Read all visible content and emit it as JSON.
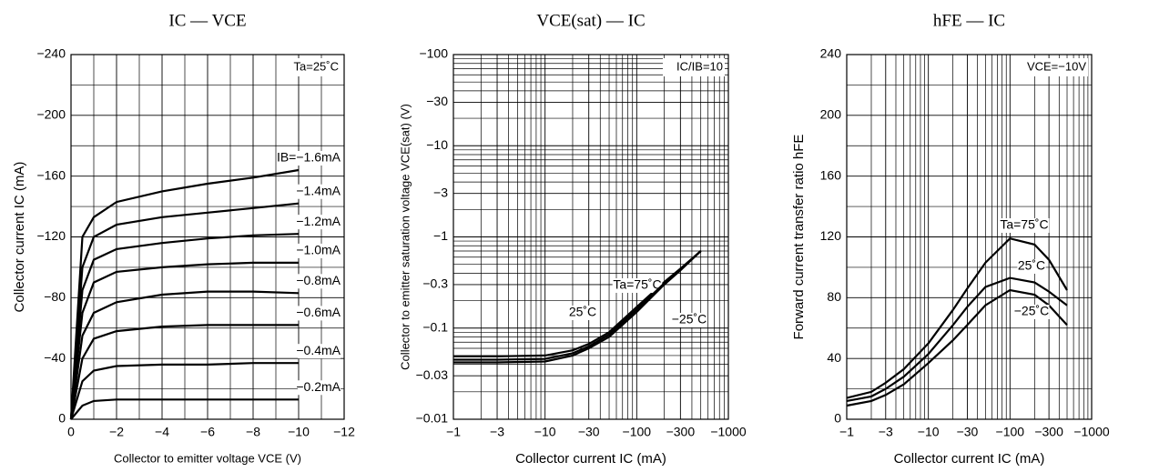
{
  "chart_data": [
    {
      "type": "line",
      "title": "IC — VCE",
      "x_label": "Collector to emitter voltage   VCE   (V)",
      "y_label": "Collector current   IC   (mA)",
      "annotation": "Ta=25˚C",
      "xlim": [
        0,
        -12
      ],
      "ylim": [
        0,
        -240
      ],
      "xticks": [
        0,
        {
          "value": -2,
          "label": "−2"
        },
        {
          "value": -4,
          "label": "−4"
        },
        {
          "value": -6,
          "label": "−6"
        },
        {
          "value": -8,
          "label": "−8"
        },
        {
          "value": -10,
          "label": "−10"
        },
        {
          "value": -12,
          "label": "−12"
        }
      ],
      "yticks": [
        0,
        {
          "value": -40,
          "label": "−40"
        },
        {
          "value": -80,
          "label": "−80"
        },
        {
          "value": -120,
          "label": "−120"
        },
        {
          "value": -160,
          "label": "−160"
        },
        {
          "value": -200,
          "label": "−200"
        },
        {
          "value": -240,
          "label": "−240"
        }
      ],
      "xminor": [
        -1,
        -3,
        -5,
        -7,
        -9,
        -11
      ],
      "yminor": [
        -20,
        -60,
        -100,
        -140,
        -180,
        -220
      ],
      "grid": true,
      "color": "#000000",
      "x": [
        0,
        -0.5,
        -1,
        -2,
        -4,
        -6,
        -8,
        -10
      ],
      "series": [
        {
          "name": "IB=−1.6mA",
          "values": [
            0,
            -120,
            -133,
            -143,
            -150,
            -155,
            -159,
            -164
          ]
        },
        {
          "name": "−1.4mA",
          "values": [
            0,
            -100,
            -120,
            -128,
            -133,
            -136,
            -139,
            -142
          ]
        },
        {
          "name": "−1.2mA",
          "values": [
            0,
            -85,
            -105,
            -112,
            -116,
            -119,
            -121,
            -122
          ]
        },
        {
          "name": "−1.0mA",
          "values": [
            0,
            -70,
            -90,
            -97,
            -100,
            -102,
            -103,
            -103
          ]
        },
        {
          "name": "−0.8mA",
          "values": [
            0,
            -55,
            -70,
            -77,
            -82,
            -84,
            -84,
            -83
          ]
        },
        {
          "name": "−0.6mA",
          "values": [
            0,
            -40,
            -53,
            -58,
            -61,
            -62,
            -62,
            -62
          ]
        },
        {
          "name": "−0.4mA",
          "values": [
            0,
            -25,
            -32,
            -35,
            -36,
            -36,
            -37,
            -37
          ]
        },
        {
          "name": "−0.2mA",
          "values": [
            0,
            -9,
            -12,
            -13,
            -13,
            -13,
            -13,
            -13
          ]
        }
      ]
    },
    {
      "type": "line",
      "title": "VCE(sat) — IC",
      "x_label": "Collector current   IC   (mA)",
      "y_label": "Collector to emitter saturation voltage   VCE(sat)   (V)",
      "annotation": "IC/IB=10",
      "xlog": true,
      "ylog": true,
      "xlim": [
        -1,
        -1000
      ],
      "ylim": [
        -0.01,
        -100
      ],
      "xticks": [
        {
          "value": -1,
          "label": "−1"
        },
        {
          "value": -3,
          "label": "−3"
        },
        {
          "value": -10,
          "label": "−10"
        },
        {
          "value": -30,
          "label": "−30"
        },
        {
          "value": -100,
          "label": "−100"
        },
        {
          "value": -300,
          "label": "−300"
        },
        {
          "value": -1000,
          "label": "−1000"
        }
      ],
      "yticks": [
        {
          "value": -0.01,
          "label": "−0.01"
        },
        {
          "value": -0.03,
          "label": "−0.03"
        },
        {
          "value": -0.1,
          "label": "−0.1"
        },
        {
          "value": -0.3,
          "label": "−0.3"
        },
        {
          "value": -1,
          "label": "−1"
        },
        {
          "value": -3,
          "label": "−3"
        },
        {
          "value": -10,
          "label": "−10"
        },
        {
          "value": -30,
          "label": "−30"
        },
        {
          "value": -100,
          "label": "−100"
        }
      ],
      "xminor": [
        -2,
        -4,
        -5,
        -6,
        -7,
        -8,
        -9,
        -20,
        -40,
        -50,
        -60,
        -70,
        -80,
        -90,
        -200,
        -400,
        -500,
        -600,
        -700,
        -800,
        -900
      ],
      "yminor": [
        -0.02,
        -0.04,
        -0.05,
        -0.06,
        -0.07,
        -0.08,
        -0.09,
        -0.2,
        -0.4,
        -0.5,
        -0.6,
        -0.7,
        -0.8,
        -0.9,
        -2,
        -4,
        -5,
        -6,
        -7,
        -8,
        -9,
        -20,
        -40,
        -50,
        -60,
        -70,
        -80,
        -90
      ],
      "grid": true,
      "color": "#000000",
      "x": [
        -1,
        -3,
        -10,
        -20,
        -30,
        -50,
        -100,
        -200,
        -300,
        -500
      ],
      "series": [
        {
          "name": "Ta=75˚C",
          "values": [
            -0.049,
            -0.049,
            -0.05,
            -0.057,
            -0.067,
            -0.09,
            -0.17,
            -0.32,
            -0.45,
            -0.7
          ]
        },
        {
          "name": "25˚C",
          "values": [
            -0.045,
            -0.045,
            -0.046,
            -0.053,
            -0.063,
            -0.085,
            -0.16,
            -0.31,
            -0.44,
            -0.7
          ]
        },
        {
          "name": "−25˚C",
          "values": [
            -0.042,
            -0.042,
            -0.043,
            -0.05,
            -0.06,
            -0.08,
            -0.15,
            -0.3,
            -0.43,
            -0.7
          ]
        }
      ]
    },
    {
      "type": "line",
      "title": "hFE — IC",
      "x_label": "Collector current   IC   (mA)",
      "y_label": "Forward current transfer ratio   hFE",
      "annotation": "VCE=−10V",
      "xlog": true,
      "xlim": [
        -1,
        -1000
      ],
      "ylim": [
        0,
        240
      ],
      "xticks": [
        {
          "value": -1,
          "label": "−1"
        },
        {
          "value": -3,
          "label": "−3"
        },
        {
          "value": -10,
          "label": "−10"
        },
        {
          "value": -30,
          "label": "−30"
        },
        {
          "value": -100,
          "label": "−100"
        },
        {
          "value": -300,
          "label": "−300"
        },
        {
          "value": -1000,
          "label": "−1000"
        }
      ],
      "yticks": [
        0,
        40,
        80,
        120,
        160,
        200,
        240
      ],
      "xminor": [
        -2,
        -4,
        -5,
        -6,
        -7,
        -8,
        -9,
        -20,
        -40,
        -50,
        -60,
        -70,
        -80,
        -90,
        -200,
        -400,
        -500,
        -600,
        -700,
        -800,
        -900
      ],
      "yminor": [
        20,
        60,
        100,
        140,
        180,
        220
      ],
      "grid": true,
      "color": "#000000",
      "x": [
        -1,
        -2,
        -3,
        -5,
        -10,
        -20,
        -30,
        -50,
        -100,
        -200,
        -300,
        -500
      ],
      "series": [
        {
          "name": "Ta=75˚C",
          "values": [
            14,
            18,
            24,
            33,
            50,
            72,
            86,
            103,
            119,
            115,
            105,
            85
          ]
        },
        {
          "name": "25˚C",
          "values": [
            12,
            15,
            20,
            28,
            43,
            62,
            74,
            87,
            93,
            90,
            84,
            75
          ]
        },
        {
          "name": "−25˚C",
          "values": [
            9,
            12,
            16,
            23,
            37,
            52,
            62,
            75,
            85,
            82,
            75,
            62
          ]
        }
      ]
    }
  ]
}
